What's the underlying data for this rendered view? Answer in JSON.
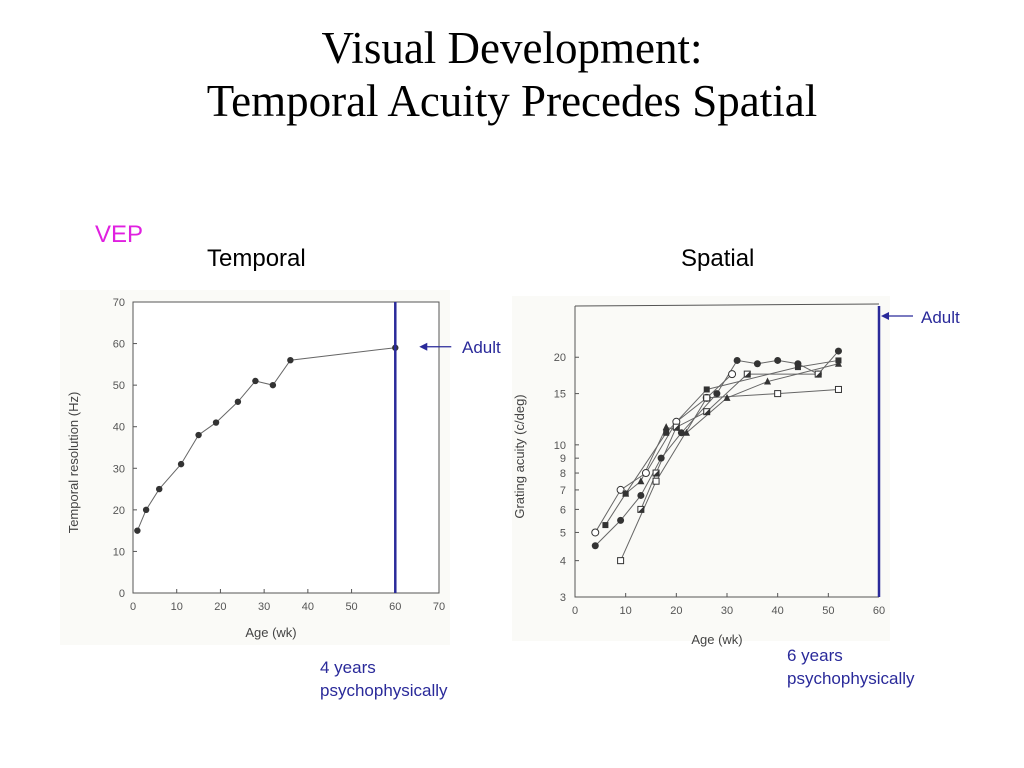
{
  "slide": {
    "title_line1": "Visual Development:",
    "title_line2": "Temporal Acuity Precedes Spatial",
    "vep_label": "VEP",
    "temporal_heading": "Temporal",
    "spatial_heading": "Spatial",
    "temporal_adult": "Adult",
    "spatial_adult": "Adult",
    "temporal_note_line1": "4 years",
    "temporal_note_line2": "psychophysically",
    "spatial_note_line1": "6 years",
    "spatial_note_line2": "psychophysically"
  },
  "colors": {
    "vep": "#e020e0",
    "annotation": "#2a2a9a",
    "data": "#333333"
  },
  "chart_data": [
    {
      "type": "line",
      "xlabel": "Age (wk)",
      "ylabel": "Temporal  resolution  (Hz)",
      "xlim": [
        0,
        70
      ],
      "ylim": [
        0,
        70
      ],
      "xticks": [
        0,
        10,
        20,
        30,
        40,
        50,
        60,
        70
      ],
      "yticks": [
        0,
        10,
        20,
        30,
        40,
        50,
        60,
        70
      ],
      "adult_marker_x": 60,
      "series": [
        {
          "x": [
            1,
            3,
            6,
            11,
            15,
            19,
            24,
            28,
            32,
            36,
            60
          ],
          "y": [
            15,
            20,
            25,
            31,
            38,
            41,
            46,
            51,
            50,
            56,
            59
          ]
        }
      ]
    },
    {
      "type": "line",
      "xlabel": "Age (wk)",
      "ylabel": "Grating acuity (c/deg)",
      "scale_y": "log",
      "xlim": [
        0,
        60
      ],
      "ylim": [
        3,
        30
      ],
      "xticks": [
        0,
        10,
        20,
        30,
        40,
        50,
        60
      ],
      "yticks": [
        3,
        4,
        5,
        6,
        7,
        8,
        9,
        10,
        15,
        20
      ],
      "adult_marker_x": 60,
      "series": [
        {
          "marker": "filled-circle",
          "x": [
            4,
            9,
            13,
            17,
            21,
            28,
            32,
            36,
            40,
            44,
            48,
            52
          ],
          "y": [
            4.5,
            5.5,
            6.7,
            9,
            11,
            15,
            19.5,
            19,
            19.5,
            19,
            17.5,
            21
          ]
        },
        {
          "marker": "open-circle",
          "x": [
            4,
            9,
            14,
            20,
            26,
            31
          ],
          "y": [
            5,
            7,
            8,
            12,
            14.5,
            17.5
          ]
        },
        {
          "marker": "filled-triangle",
          "x": [
            10,
            13,
            18,
            22,
            30,
            38,
            52
          ],
          "y": [
            6.8,
            7.5,
            11.5,
            11,
            14.5,
            16.5,
            19
          ]
        },
        {
          "marker": "filled-square",
          "x": [
            6,
            10,
            18,
            26,
            44,
            52
          ],
          "y": [
            5.3,
            6.8,
            11,
            15.5,
            18.5,
            19.5
          ]
        },
        {
          "marker": "half-square",
          "x": [
            13,
            16,
            20,
            26,
            34,
            48
          ],
          "y": [
            6,
            8,
            11.5,
            13,
            17.5,
            17.5
          ]
        },
        {
          "marker": "open-square",
          "x": [
            9,
            16,
            26,
            40,
            52
          ],
          "y": [
            4,
            7.5,
            14.5,
            15,
            15.5
          ]
        }
      ]
    }
  ]
}
